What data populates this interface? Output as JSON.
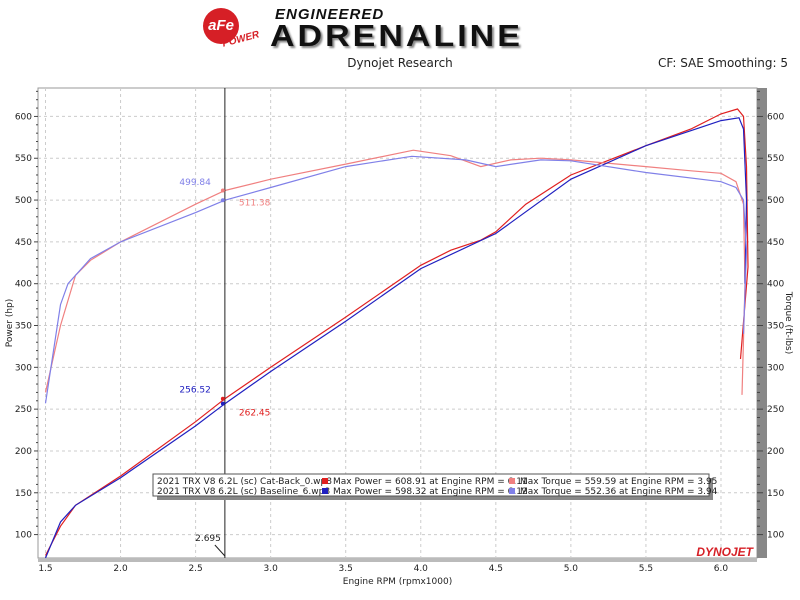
{
  "header": {
    "brand": "aFe POWER",
    "logo_line1": "ENGINEERED",
    "logo_line2": "ADRENALINE",
    "subtitle": "Dynojet Research",
    "correction": "CF: SAE Smoothing: 5"
  },
  "footer_logo": "DYNOJET",
  "chart_data": {
    "type": "line",
    "xlabel": "Engine RPM (rpmx1000)",
    "ylabel": "Power (hp)",
    "y2label": "Torque (ft-lbs)",
    "xlim": [
      1.45,
      6.24
    ],
    "ylim": [
      72,
      634
    ],
    "xticks": [
      "1.5",
      "2.0",
      "2.5",
      "3.0",
      "3.5",
      "4.0",
      "4.5",
      "5.0",
      "5.5",
      "6.0"
    ],
    "yticks": [
      "100",
      "150",
      "200",
      "250",
      "300",
      "350",
      "400",
      "450",
      "500",
      "550",
      "600"
    ],
    "grid": true,
    "colors": {
      "cat_power": "#e02020",
      "cat_torque": "#f08080",
      "base_power": "#2020c0",
      "base_torque": "#8080e8"
    },
    "cursor": {
      "x": "2.695",
      "labels": {
        "base_torque": "499.84",
        "cat_torque": "511.38",
        "base_power": "256.52",
        "cat_power": "262.45"
      }
    },
    "legend": [
      {
        "file": "2021 TRX V8 6.2L (sc) Cat-Back_0.wp8",
        "power": "Max Power = 608.91 at Engine RPM = 6.11",
        "torque": "Max Torque = 559.59 at Engine RPM = 3.95"
      },
      {
        "file": "2021 TRX V8 6.2L (sc) Baseline_6.wp8",
        "power": "Max Power = 598.32 at Engine RPM = 6.12",
        "torque": "Max Torque = 552.36 at Engine RPM = 3.94"
      }
    ],
    "series": [
      {
        "key": "cat_power",
        "x": [
          1.5,
          1.6,
          1.7,
          2.0,
          2.5,
          2.695,
          3.0,
          3.5,
          4.0,
          4.2,
          4.4,
          4.5,
          4.7,
          5.0,
          5.5,
          5.8,
          6.0,
          6.11,
          6.15,
          6.17,
          6.18,
          6.13
        ],
        "y": [
          75,
          110,
          135,
          170,
          235,
          262.45,
          300,
          360,
          422,
          440,
          452,
          462,
          495,
          530,
          565,
          585,
          603,
          608.91,
          600,
          540,
          420,
          310
        ]
      },
      {
        "key": "cat_torque",
        "x": [
          1.5,
          1.6,
          1.7,
          1.8,
          2.0,
          2.5,
          2.695,
          3.0,
          3.5,
          3.95,
          4.2,
          4.4,
          4.6,
          4.8,
          5.0,
          5.5,
          5.8,
          6.0,
          6.1,
          6.15,
          6.16,
          6.14
        ],
        "y": [
          270,
          350,
          410,
          428,
          450,
          495,
          511.38,
          525,
          543,
          559.59,
          553,
          540,
          548,
          550,
          548,
          540,
          535,
          532,
          522,
          495,
          400,
          267
        ]
      },
      {
        "key": "base_power",
        "x": [
          1.5,
          1.6,
          1.7,
          2.0,
          2.5,
          2.695,
          3.0,
          3.5,
          4.0,
          4.5,
          5.0,
          5.5,
          6.0,
          6.12,
          6.15,
          6.17,
          6.16
        ],
        "y": [
          72,
          115,
          135,
          168,
          230,
          256.52,
          295,
          355,
          418,
          460,
          525,
          565,
          595,
          598.32,
          585,
          500,
          400
        ]
      },
      {
        "key": "base_torque",
        "x": [
          1.5,
          1.6,
          1.65,
          1.8,
          2.0,
          2.5,
          2.695,
          3.0,
          3.5,
          3.94,
          4.3,
          4.5,
          4.8,
          5.0,
          5.5,
          6.0,
          6.1,
          6.15,
          6.17,
          6.15
        ],
        "y": [
          257,
          375,
          400,
          430,
          450,
          485,
          499.84,
          515,
          540,
          552.36,
          548,
          540,
          548,
          547,
          533,
          522,
          515,
          500,
          440,
          340
        ]
      }
    ]
  }
}
